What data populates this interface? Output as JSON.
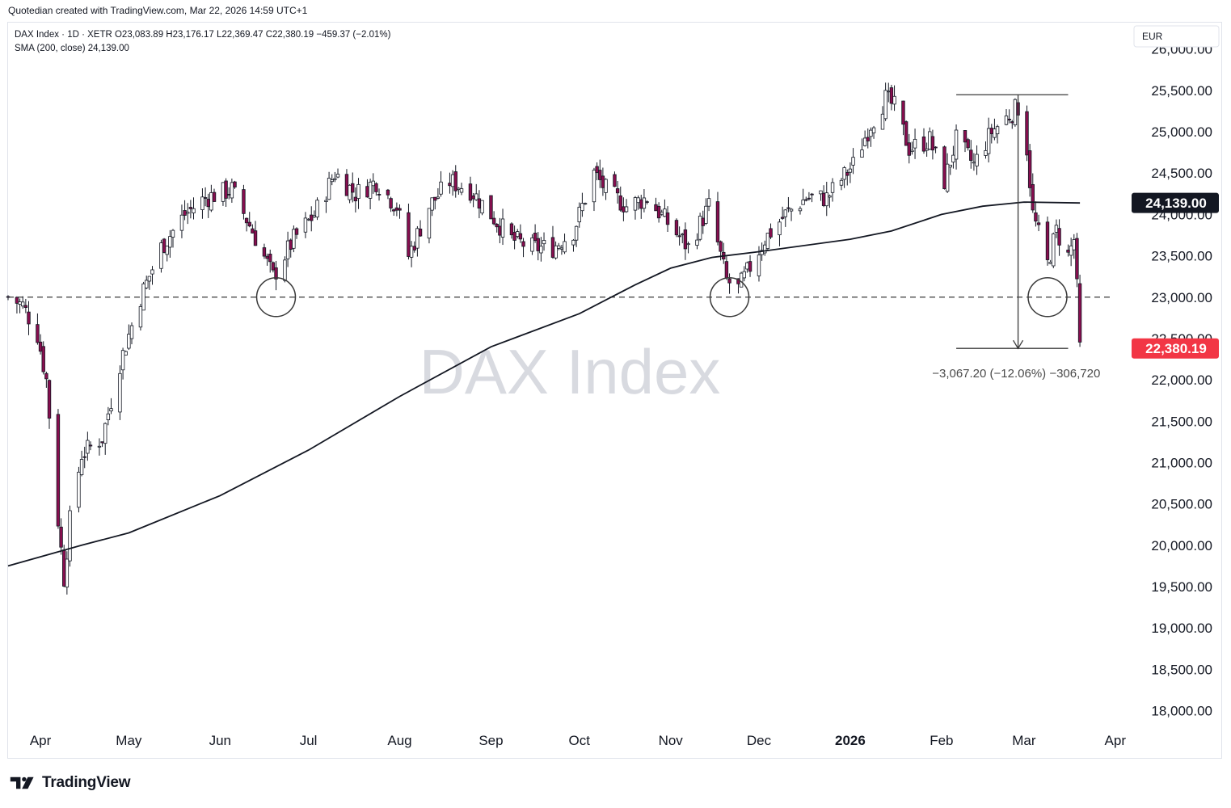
{
  "header": {
    "attribution": "Quotedian created with TradingView.com, Mar 22, 2026 14:59 UTC+1"
  },
  "footer": {
    "brand": "TradingView"
  },
  "legend": {
    "line1": "DAX Index · 1D · XETR  O23,083.89  H23,176.17  L22,369.47  C22,380.19  −459.37 (−2.01%)",
    "line2": "SMA (200, close)  24,139.00"
  },
  "watermark": "DAX Index",
  "currency": "EUR",
  "measure_label": "−3,067.20 (−12.06%) −306,720",
  "chart_data": {
    "type": "candlestick",
    "symbol": "DAX Index",
    "interval": "1D",
    "exchange": "XETR",
    "ohlc": {
      "open": 23083.89,
      "high": 23176.17,
      "low": 22369.47,
      "close": 22380.19,
      "change": -459.37,
      "change_pct": -2.01
    },
    "ylim": [
      17800,
      26300
    ],
    "yticks": [
      18000,
      18500,
      19000,
      19500,
      20000,
      20500,
      21000,
      21500,
      22000,
      22500,
      23000,
      23500,
      24000,
      24500,
      25000,
      25500,
      26000
    ],
    "ytick_labels": [
      "18,000.00",
      "18,500.00",
      "19,000.00",
      "19,500.00",
      "20,000.00",
      "20,500.00",
      "21,000.00",
      "21,500.00",
      "22,000.00",
      "22,500.00",
      "23,000.00",
      "23,500.00",
      "24,000.00",
      "24,500.00",
      "25,000.00",
      "25,500.00",
      "26,000.00"
    ],
    "xticks": [
      {
        "label": "Apr",
        "date": "2025-04-01",
        "bold": false
      },
      {
        "label": "May",
        "date": "2025-05-01",
        "bold": false
      },
      {
        "label": "Jun",
        "date": "2025-06-01",
        "bold": false
      },
      {
        "label": "Jul",
        "date": "2025-07-01",
        "bold": false
      },
      {
        "label": "Aug",
        "date": "2025-08-01",
        "bold": false
      },
      {
        "label": "Sep",
        "date": "2025-09-01",
        "bold": false
      },
      {
        "label": "Oct",
        "date": "2025-10-01",
        "bold": false
      },
      {
        "label": "Nov",
        "date": "2025-11-01",
        "bold": false
      },
      {
        "label": "Dec",
        "date": "2025-12-01",
        "bold": false
      },
      {
        "label": "2026",
        "date": "2026-01-01",
        "bold": true
      },
      {
        "label": "Feb",
        "date": "2026-02-01",
        "bold": false
      },
      {
        "label": "Mar",
        "date": "2026-03-01",
        "bold": false
      },
      {
        "label": "Apr",
        "date": "2026-04-01",
        "bold": false
      }
    ],
    "xlim": [
      "2025-03-21",
      "2026-04-06"
    ],
    "price_path": [
      [
        "2025-03-21",
        23000
      ],
      [
        "2025-03-26",
        22900
      ],
      [
        "2025-03-31",
        22550
      ],
      [
        "2025-04-03",
        22000
      ],
      [
        "2025-04-07",
        20300
      ],
      [
        "2025-04-09",
        19600
      ],
      [
        "2025-04-11",
        20300
      ],
      [
        "2025-04-15",
        21100
      ],
      [
        "2025-04-22",
        21300
      ],
      [
        "2025-04-28",
        22200
      ],
      [
        "2025-05-05",
        23000
      ],
      [
        "2025-05-12",
        23600
      ],
      [
        "2025-05-20",
        24000
      ],
      [
        "2025-05-27",
        24200
      ],
      [
        "2025-06-05",
        24300
      ],
      [
        "2025-06-12",
        23800
      ],
      [
        "2025-06-19",
        23250
      ],
      [
        "2025-06-26",
        23700
      ],
      [
        "2025-07-03",
        24000
      ],
      [
        "2025-07-10",
        24500
      ],
      [
        "2025-07-17",
        24250
      ],
      [
        "2025-07-24",
        24400
      ],
      [
        "2025-07-31",
        24100
      ],
      [
        "2025-08-04",
        23500
      ],
      [
        "2025-08-11",
        24100
      ],
      [
        "2025-08-18",
        24400
      ],
      [
        "2025-08-25",
        24300
      ],
      [
        "2025-09-01",
        24000
      ],
      [
        "2025-09-08",
        23700
      ],
      [
        "2025-09-15",
        23600
      ],
      [
        "2025-09-22",
        23600
      ],
      [
        "2025-09-29",
        23800
      ],
      [
        "2025-10-06",
        24500
      ],
      [
        "2025-10-10",
        24300
      ],
      [
        "2025-10-17",
        24100
      ],
      [
        "2025-10-24",
        24200
      ],
      [
        "2025-10-31",
        23900
      ],
      [
        "2025-11-07",
        23600
      ],
      [
        "2025-11-14",
        24100
      ],
      [
        "2025-11-20",
        23200
      ],
      [
        "2025-11-24",
        23100
      ],
      [
        "2025-11-27",
        23300
      ],
      [
        "2025-12-03",
        23700
      ],
      [
        "2025-12-10",
        24000
      ],
      [
        "2025-12-17",
        24200
      ],
      [
        "2025-12-24",
        24200
      ],
      [
        "2026-01-02",
        24600
      ],
      [
        "2026-01-08",
        25100
      ],
      [
        "2026-01-13",
        25400
      ],
      [
        "2026-01-16",
        25300
      ],
      [
        "2026-01-21",
        24800
      ],
      [
        "2026-01-28",
        24900
      ],
      [
        "2026-02-02",
        24400
      ],
      [
        "2026-02-06",
        24900
      ],
      [
        "2026-02-12",
        24600
      ],
      [
        "2026-02-18",
        25000
      ],
      [
        "2026-02-24",
        25200
      ],
      [
        "2026-02-27",
        25300
      ],
      [
        "2026-03-02",
        24800
      ],
      [
        "2026-03-04",
        24000
      ],
      [
        "2026-03-09",
        23400
      ],
      [
        "2026-03-12",
        23800
      ],
      [
        "2026-03-16",
        23500
      ],
      [
        "2026-03-18",
        23700
      ],
      [
        "2026-03-19",
        23100
      ],
      [
        "2026-03-20",
        22380
      ]
    ],
    "sma200": [
      [
        "2025-03-21",
        19750
      ],
      [
        "2025-04-15",
        20000
      ],
      [
        "2025-05-01",
        20150
      ],
      [
        "2025-06-01",
        20600
      ],
      [
        "2025-07-01",
        21150
      ],
      [
        "2025-08-01",
        21800
      ],
      [
        "2025-09-01",
        22400
      ],
      [
        "2025-10-01",
        22800
      ],
      [
        "2025-10-20",
        23150
      ],
      [
        "2025-11-01",
        23350
      ],
      [
        "2025-11-15",
        23480
      ],
      [
        "2025-12-01",
        23550
      ],
      [
        "2026-01-01",
        23700
      ],
      [
        "2026-01-15",
        23800
      ],
      [
        "2026-02-01",
        24000
      ],
      [
        "2026-02-15",
        24100
      ],
      [
        "2026-03-01",
        24150
      ],
      [
        "2026-03-20",
        24139
      ]
    ],
    "support_level": 23000,
    "circled_lows": [
      {
        "date": "2025-06-20",
        "price": 23000
      },
      {
        "date": "2025-11-21",
        "price": 23000
      },
      {
        "date": "2026-03-09",
        "price": 23000
      }
    ],
    "measure": {
      "start_date": "2026-02-27",
      "top": 25447.39,
      "bottom": 22380.19,
      "from_date": "2026-02-06",
      "to_date": "2026-03-16"
    },
    "last_close": 22380.19,
    "sma_value": 24139.0,
    "last_close_label": "22,380.19",
    "sma_value_label": "24,139.00"
  },
  "colors": {
    "up": "#ffffff",
    "down": "#880e4f",
    "wick": "#131722",
    "sma": "#131722",
    "close_tag": "#f23645",
    "sma_tag": "#131722"
  }
}
